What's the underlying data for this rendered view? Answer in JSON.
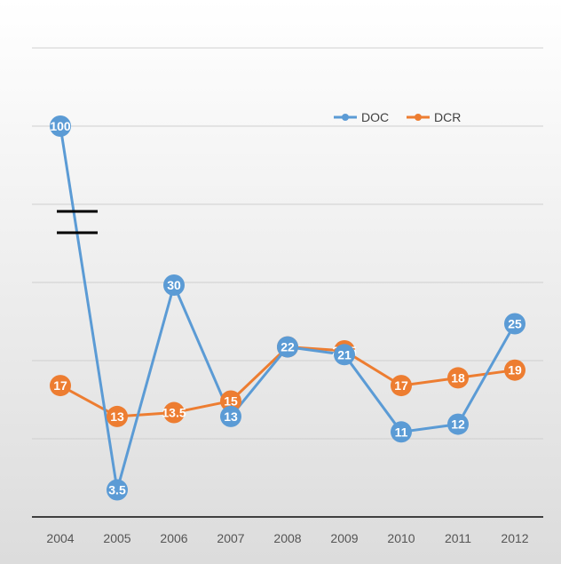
{
  "chart_data": {
    "type": "line",
    "categories": [
      "2004",
      "2005",
      "2006",
      "2007",
      "2008",
      "2009",
      "2010",
      "2011",
      "2012"
    ],
    "series": [
      {
        "name": "DOC",
        "color": "#5B9BD5",
        "values": [
          100,
          3.5,
          30,
          13,
          22,
          21,
          11,
          12,
          25
        ],
        "labels": [
          "100",
          "3.5",
          "30",
          "13",
          "22",
          "21",
          "11",
          "12",
          "25"
        ]
      },
      {
        "name": "DCR",
        "color": "#ED7D31",
        "values": [
          17,
          13,
          13.5,
          15,
          22,
          21.5,
          17,
          18,
          19
        ],
        "labels": [
          "17",
          "13",
          "13.5",
          "15",
          "22",
          "21.5",
          "17",
          "18",
          "19"
        ]
      }
    ],
    "axis_break": {
      "between": [
        25,
        100
      ],
      "marker": "double horizontal bars on DOC line"
    },
    "grid": true,
    "legend_position": "top-right",
    "title": "",
    "xlabel": "",
    "ylabel": ""
  }
}
